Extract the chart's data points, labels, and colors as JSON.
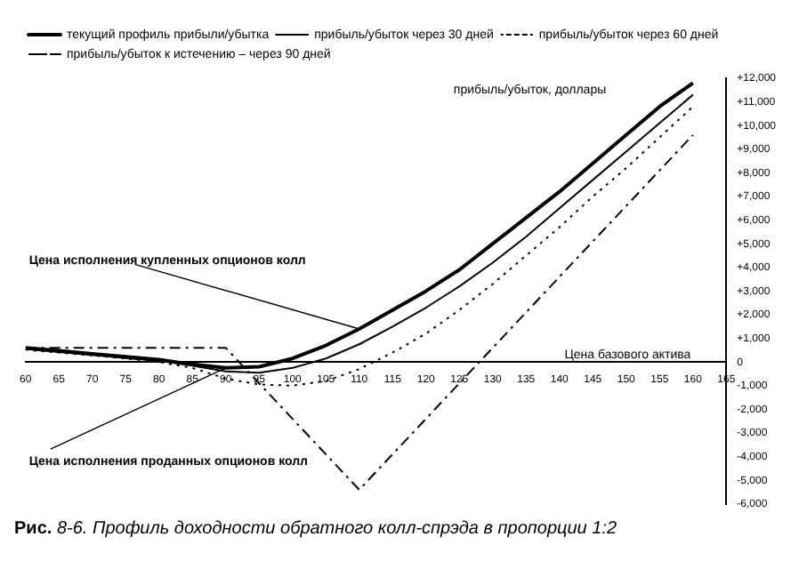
{
  "chart_data": {
    "type": "line",
    "title": "Рис. 8-6. Профиль доходности обратного колл-спрэда в пропорции 1:2",
    "xlabel": "Цена базового актива",
    "ylabel": "прибыль/убыток, доллары",
    "x": [
      60,
      65,
      70,
      75,
      80,
      85,
      90,
      95,
      100,
      105,
      110,
      115,
      120,
      125,
      130,
      135,
      140,
      145,
      150,
      155,
      160
    ],
    "series": [
      {
        "name": "текущий профиль прибыли/убытка",
        "color": "#000000",
        "line_style": "solid",
        "values": [
          600,
          480,
          350,
          220,
          100,
          -100,
          -250,
          -200,
          150,
          700,
          1400,
          2200,
          3000,
          3900,
          5000,
          6100,
          7200,
          8400,
          9600,
          10800,
          11800
        ]
      },
      {
        "name": "прибыль/убыток через 30 дней",
        "color": "#000000",
        "line_style": "solid",
        "values": [
          550,
          420,
          300,
          170,
          50,
          -150,
          -400,
          -450,
          -250,
          150,
          750,
          1500,
          2300,
          3200,
          4200,
          5300,
          6500,
          7700,
          8900,
          10100,
          11300
        ]
      },
      {
        "name": "прибыль/убыток через 60 дней",
        "color": "#000000",
        "line_style": "dotted",
        "values": [
          520,
          400,
          280,
          150,
          0,
          -250,
          -700,
          -950,
          -1000,
          -800,
          -300,
          400,
          1200,
          2200,
          3300,
          4500,
          5700,
          7000,
          8200,
          9500,
          10800
        ]
      },
      {
        "name": "прибыль/убыток к истечению – через 90 дней",
        "color": "#000000",
        "line_style": "dashed",
        "x": [
          60,
          90,
          110,
          160
        ],
        "values": [
          600,
          600,
          -5400,
          9600
        ]
      }
    ],
    "xlim": [
      60,
      165
    ],
    "xticks": [
      60,
      65,
      70,
      75,
      80,
      85,
      90,
      95,
      100,
      105,
      110,
      115,
      120,
      125,
      130,
      135,
      140,
      145,
      150,
      155,
      160,
      165
    ],
    "ylim": [
      -6000,
      12000
    ],
    "yticks": [
      {
        "value": -6000,
        "label": "-6,000"
      },
      {
        "value": -5000,
        "label": "-5,000"
      },
      {
        "value": -4000,
        "label": "-4,000"
      },
      {
        "value": -3000,
        "label": "-3,000"
      },
      {
        "value": -2000,
        "label": "-2,000"
      },
      {
        "value": -1000,
        "label": "-1,000"
      },
      0,
      {
        "value": 1000,
        "label": "+1,000"
      },
      {
        "value": 2000,
        "label": "+2,000"
      },
      {
        "value": 3000,
        "label": "+3,000"
      },
      {
        "value": 4000,
        "label": "+4,000"
      },
      {
        "value": 5000,
        "label": "+5,000"
      },
      {
        "value": 6000,
        "label": "+6,000"
      },
      {
        "value": 7000,
        "label": "+7,000"
      },
      {
        "value": 8000,
        "label": "+8,000"
      },
      {
        "value": 9000,
        "label": "+9,000"
      },
      {
        "value": 10000,
        "label": "+10,000"
      },
      {
        "value": 11000,
        "label": "+11,000"
      },
      {
        "value": 12000,
        "label": "+12,000"
      }
    ],
    "annotations": [
      {
        "text": "Цена исполнения купленных опционов колл",
        "x": 110,
        "y": 1400
      },
      {
        "text": "Цена исполнения проданных опционов колл",
        "x": 90,
        "y": -250
      }
    ],
    "grid": false,
    "legend": "top left",
    "marker": "none"
  }
}
